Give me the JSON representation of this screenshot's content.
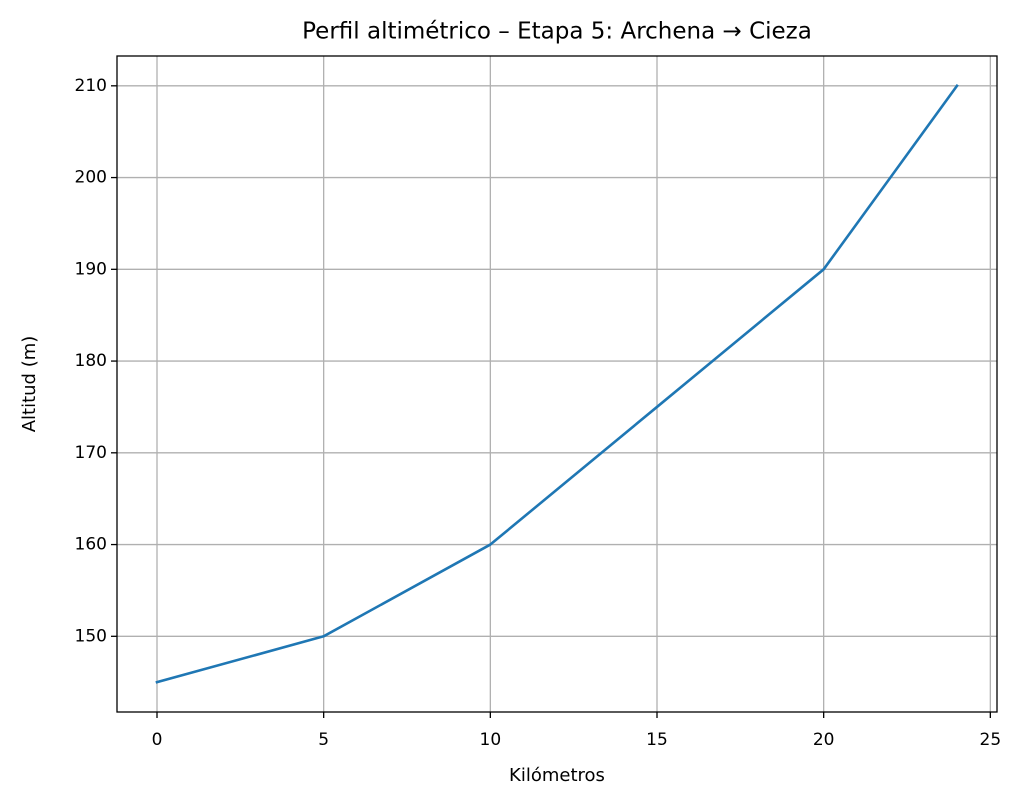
{
  "chart_data": {
    "type": "line",
    "title": "Perfil altimétrico – Etapa 5: Archena → Cieza",
    "xlabel": "Kilómetros",
    "ylabel": "Altitud (m)",
    "x": [
      0,
      5,
      10,
      15,
      20,
      24
    ],
    "series": [
      {
        "name": "Altitud",
        "color": "#1f77b4",
        "values": [
          145,
          150,
          160,
          175,
          190,
          210
        ]
      }
    ],
    "xlim": [
      -1.2,
      25.2
    ],
    "xticks": [
      0,
      5,
      10,
      15,
      20,
      25
    ],
    "ylim": [
      141.75,
      213.25
    ],
    "yticks": [
      150,
      160,
      170,
      180,
      190,
      200,
      210
    ],
    "grid": true,
    "legend": false
  }
}
